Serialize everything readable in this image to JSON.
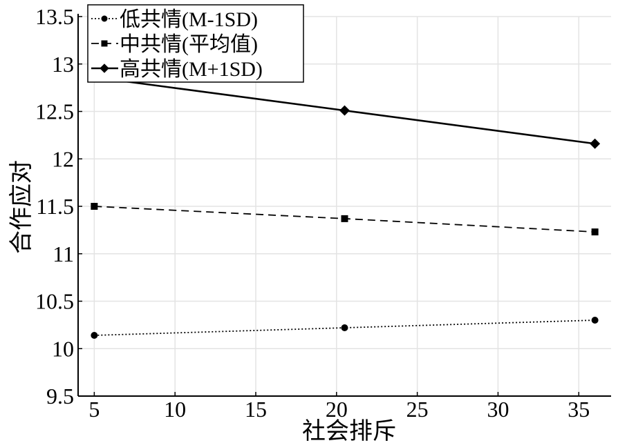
{
  "chart_data": {
    "type": "line",
    "xlabel": "社会排斥",
    "ylabel": "合作应对",
    "x": [
      5,
      20.5,
      36
    ],
    "xlim": [
      4,
      37
    ],
    "ylim": [
      9.5,
      13.5
    ],
    "xticks": [
      5,
      10,
      15,
      20,
      25,
      30,
      35
    ],
    "yticks": [
      9.5,
      10,
      10.5,
      11,
      11.5,
      12,
      12.5,
      13,
      13.5
    ],
    "ytick_labels": [
      "9.5",
      "10",
      "10.5",
      "11",
      "11.5",
      "12",
      "12.5",
      "13",
      "13.5"
    ],
    "grid": true,
    "legend_position": "top-left",
    "series": [
      {
        "name": "低共情(M-1SD)",
        "values": [
          10.14,
          10.22,
          10.3
        ],
        "marker": "circle",
        "line": "dotted",
        "color": "#000000"
      },
      {
        "name": "中共情(平均值)",
        "values": [
          11.5,
          11.37,
          11.23
        ],
        "marker": "square",
        "line": "dashed",
        "color": "#000000"
      },
      {
        "name": "高共情(M+1SD)",
        "values": [
          12.86,
          12.51,
          12.16
        ],
        "marker": "diamond",
        "line": "solid",
        "color": "#000000"
      }
    ]
  }
}
